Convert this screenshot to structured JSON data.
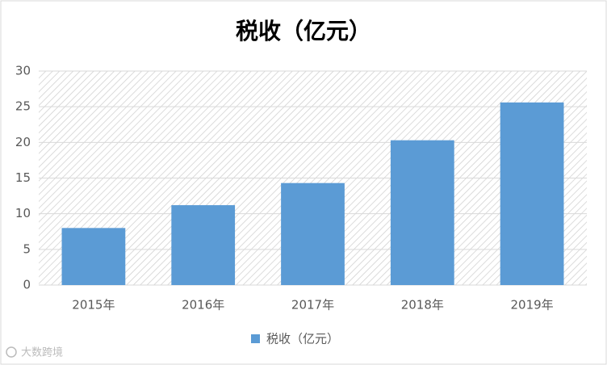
{
  "chart_data": {
    "type": "bar",
    "title": "税收（亿元）",
    "categories": [
      "2015年",
      "2016年",
      "2017年",
      "2018年",
      "2019年"
    ],
    "series": [
      {
        "name": "税收（亿元）",
        "color": "#5b9bd5",
        "values": [
          8.0,
          11.2,
          14.3,
          20.3,
          25.6
        ]
      }
    ],
    "ylim": [
      0,
      30
    ],
    "yticks": [
      0,
      5,
      10,
      15,
      20,
      25,
      30
    ],
    "grid": true,
    "legend": "bottom"
  },
  "watermark": "大数跨境"
}
